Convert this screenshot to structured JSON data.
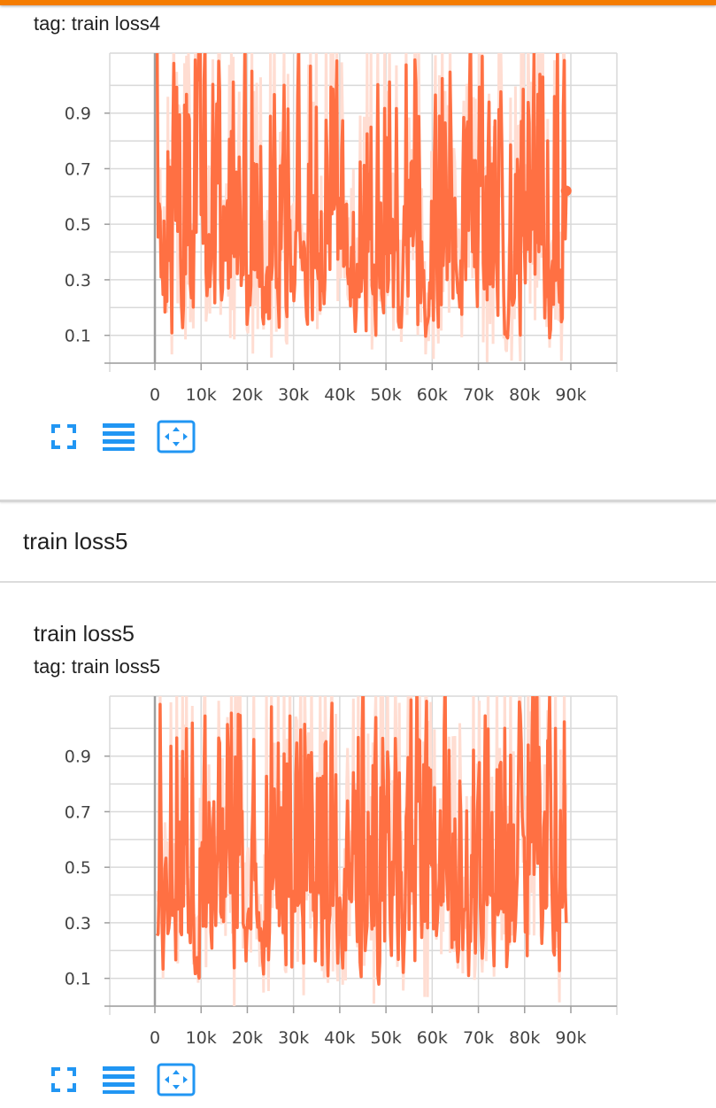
{
  "colors": {
    "accent": "#f57c00",
    "series": "#ff7043",
    "series_light": "#ffddd2",
    "icon_blue": "#2196f3",
    "grid": "#d9d9d9",
    "axis": "#9e9e9e"
  },
  "card1": {
    "tag": "tag: train loss4"
  },
  "section2": {
    "header": "train loss5"
  },
  "card2": {
    "title": "train loss5",
    "tag": "tag: train loss5"
  },
  "toolbar": {
    "fullscreen_icon": "fullscreen-icon",
    "lines_icon": "menu-lines-icon",
    "fit_icon": "fit-domain-icon"
  },
  "chart_data": [
    {
      "type": "line",
      "title": "train loss4",
      "xlabel": "",
      "ylabel": "",
      "xlim": [
        0,
        90000
      ],
      "ylim": [
        0,
        1.1
      ],
      "x_ticks": [
        "0",
        "10k",
        "20k",
        "30k",
        "40k",
        "50k",
        "60k",
        "70k",
        "80k",
        "90k"
      ],
      "y_ticks": [
        "0.1",
        "0.3",
        "0.5",
        "0.7",
        "0.9"
      ],
      "y_tick_values": [
        0.1,
        0.3,
        0.5,
        0.7,
        0.9
      ],
      "seed": 4,
      "last_value": 0.62,
      "series": [
        {
          "name": "train loss4 (smoothed)"
        },
        {
          "name": "train loss4 (raw)"
        }
      ]
    },
    {
      "type": "line",
      "title": "train loss5",
      "xlabel": "",
      "ylabel": "",
      "xlim": [
        0,
        90000
      ],
      "ylim": [
        0,
        1.1
      ],
      "x_ticks": [
        "0",
        "10k",
        "20k",
        "30k",
        "40k",
        "50k",
        "60k",
        "70k",
        "80k",
        "90k"
      ],
      "y_ticks": [
        "0.1",
        "0.3",
        "0.5",
        "0.7",
        "0.9"
      ],
      "y_tick_values": [
        0.1,
        0.3,
        0.5,
        0.7,
        0.9
      ],
      "seed": 5,
      "last_value": 0.3,
      "series": [
        {
          "name": "train loss5 (smoothed)"
        },
        {
          "name": "train loss5 (raw)"
        }
      ]
    }
  ]
}
